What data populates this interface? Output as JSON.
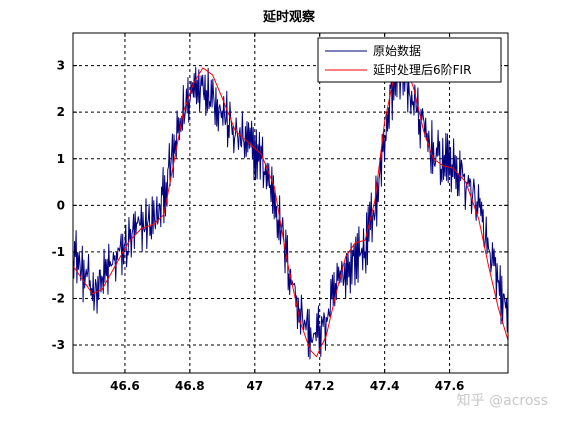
{
  "chart_data": {
    "type": "line",
    "title": "延时观察",
    "xlabel": "",
    "ylabel": "",
    "xlim": [
      46.44,
      47.78
    ],
    "ylim": [
      -3.6,
      3.7
    ],
    "x_ticks": [
      46.6,
      46.8,
      47.0,
      47.2,
      47.4,
      47.6
    ],
    "x_tick_labels": [
      "46.6",
      "46.8",
      "47",
      "47.2",
      "47.4",
      "47.6"
    ],
    "y_ticks": [
      -3,
      -2,
      -1,
      0,
      1,
      2,
      3
    ],
    "y_tick_labels": [
      "-3",
      "-2",
      "-1",
      "0",
      "1",
      "2",
      "3"
    ],
    "grid": true,
    "legend_position": "top-right",
    "series": [
      {
        "name": "原始数据",
        "color": "#00007f",
        "style": "noisy",
        "points": [
          [
            46.44,
            -0.9
          ],
          [
            46.47,
            -1.5
          ],
          [
            46.5,
            -1.8
          ],
          [
            46.54,
            -1.5
          ],
          [
            46.58,
            -1.1
          ],
          [
            46.62,
            -0.7
          ],
          [
            46.66,
            -0.4
          ],
          [
            46.7,
            -0.3
          ],
          [
            46.74,
            0.8
          ],
          [
            46.78,
            2.0
          ],
          [
            46.82,
            2.7
          ],
          [
            46.86,
            2.5
          ],
          [
            46.9,
            2.0
          ],
          [
            46.94,
            1.5
          ],
          [
            46.98,
            1.3
          ],
          [
            47.02,
            1.0
          ],
          [
            47.06,
            0.2
          ],
          [
            47.1,
            -1.2
          ],
          [
            47.14,
            -2.3
          ],
          [
            47.18,
            -2.9
          ],
          [
            47.22,
            -2.5
          ],
          [
            47.26,
            -1.6
          ],
          [
            47.3,
            -1.2
          ],
          [
            47.34,
            -0.9
          ],
          [
            47.38,
            0.3
          ],
          [
            47.41,
            2.0
          ],
          [
            47.44,
            3.0
          ],
          [
            47.48,
            2.4
          ],
          [
            47.52,
            1.6
          ],
          [
            47.56,
            1.0
          ],
          [
            47.6,
            0.9
          ],
          [
            47.64,
            0.6
          ],
          [
            47.68,
            0.2
          ],
          [
            47.72,
            -1.0
          ],
          [
            47.76,
            -2.0
          ],
          [
            47.78,
            -2.3
          ]
        ]
      },
      {
        "name": "延时处理后6阶FIR",
        "color": "#ff0000",
        "style": "smooth",
        "points": [
          [
            46.44,
            -1.3
          ],
          [
            46.47,
            -1.6
          ],
          [
            46.5,
            -1.9
          ],
          [
            46.53,
            -1.8
          ],
          [
            46.57,
            -1.3
          ],
          [
            46.61,
            -0.8
          ],
          [
            46.65,
            -0.5
          ],
          [
            46.69,
            -0.4
          ],
          [
            46.72,
            -0.2
          ],
          [
            46.75,
            0.9
          ],
          [
            46.78,
            2.0
          ],
          [
            46.81,
            2.6
          ],
          [
            46.84,
            2.95
          ],
          [
            46.87,
            2.8
          ],
          [
            46.9,
            2.3
          ],
          [
            46.94,
            1.6
          ],
          [
            46.98,
            1.35
          ],
          [
            47.02,
            1.1
          ],
          [
            47.06,
            0.4
          ],
          [
            47.1,
            -1.2
          ],
          [
            47.14,
            -2.5
          ],
          [
            47.17,
            -3.1
          ],
          [
            47.19,
            -3.25
          ],
          [
            47.22,
            -2.8
          ],
          [
            47.25,
            -1.9
          ],
          [
            47.28,
            -1.1
          ],
          [
            47.31,
            -0.8
          ],
          [
            47.34,
            -0.75
          ],
          [
            47.37,
            0.1
          ],
          [
            47.4,
            1.8
          ],
          [
            47.43,
            2.8
          ],
          [
            47.46,
            3.1
          ],
          [
            47.49,
            2.5
          ],
          [
            47.52,
            1.6
          ],
          [
            47.55,
            1.0
          ],
          [
            47.58,
            0.85
          ],
          [
            47.61,
            0.8
          ],
          [
            47.65,
            0.5
          ],
          [
            47.69,
            -0.3
          ],
          [
            47.72,
            -1.3
          ],
          [
            47.75,
            -2.2
          ],
          [
            47.78,
            -2.9
          ]
        ]
      }
    ]
  },
  "watermark": "知乎 @across"
}
